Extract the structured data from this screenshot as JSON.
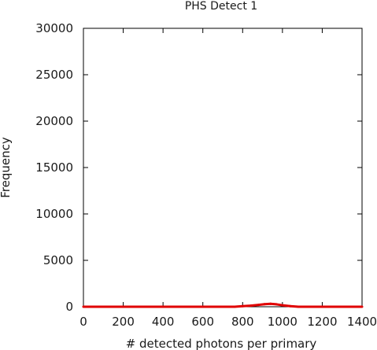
{
  "chart_data": {
    "type": "line",
    "title": "PHS Detect 1",
    "xlabel": "# detected photons per primary",
    "ylabel": "Frequency",
    "xlim": [
      0,
      1400
    ],
    "ylim": [
      0,
      30000
    ],
    "xticks": [
      0,
      200,
      400,
      600,
      800,
      1000,
      1200,
      1400
    ],
    "yticks": [
      0,
      5000,
      10000,
      15000,
      20000,
      25000,
      30000
    ],
    "xtick_labels": [
      "0",
      "200",
      "400",
      "600",
      "800",
      "1000",
      "1200",
      "1400"
    ],
    "ytick_labels": [
      "0",
      "5000",
      "10000",
      "15000",
      "20000",
      "25000",
      "30000"
    ],
    "grid": false,
    "series": [
      {
        "color": "#e00000",
        "x": [
          0,
          100,
          200,
          300,
          400,
          500,
          600,
          700,
          760,
          800,
          840,
          880,
          910,
          940,
          970,
          1000,
          1040,
          1080,
          1200,
          1300,
          1400
        ],
        "y": [
          0,
          0,
          0,
          0,
          0,
          0,
          0,
          0,
          0,
          60,
          120,
          200,
          280,
          320,
          260,
          160,
          60,
          0,
          0,
          0,
          0
        ]
      }
    ]
  }
}
